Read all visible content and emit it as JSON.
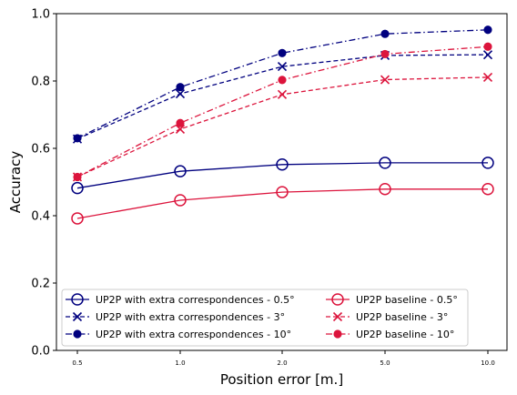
{
  "chart_data": {
    "type": "line",
    "xlabel": "Position error [m.]",
    "ylabel": "Accuracy",
    "categories": [
      "0.5",
      "1.0",
      "2.0",
      "5.0",
      "10.0"
    ],
    "ylim": [
      0.0,
      1.0
    ],
    "yticks": [
      "0.0",
      "0.2",
      "0.4",
      "0.6",
      "0.8",
      "1.0"
    ],
    "grid": false,
    "legend_position": "bottom-center",
    "series": [
      {
        "name": "UP2P with extra correspondences - 0.5°",
        "color": "#00007f",
        "marker": "open-circle",
        "linestyle": "solid",
        "values": [
          0.482,
          0.532,
          0.552,
          0.557,
          0.557
        ]
      },
      {
        "name": "UP2P with extra correspondences - 3°",
        "color": "#00007f",
        "marker": "x",
        "linestyle": "dashed",
        "values": [
          0.628,
          0.762,
          0.843,
          0.876,
          0.878
        ]
      },
      {
        "name": "UP2P with extra correspondences - 10°",
        "color": "#00007f",
        "marker": "dot",
        "linestyle": "dashdot",
        "values": [
          0.63,
          0.782,
          0.883,
          0.94,
          0.952
        ]
      },
      {
        "name": "UP2P baseline - 0.5°",
        "color": "#dc143c",
        "marker": "open-circle",
        "linestyle": "solid",
        "values": [
          0.392,
          0.446,
          0.47,
          0.479,
          0.479
        ]
      },
      {
        "name": "UP2P baseline - 3°",
        "color": "#dc143c",
        "marker": "x",
        "linestyle": "dashed",
        "values": [
          0.515,
          0.657,
          0.76,
          0.804,
          0.811
        ]
      },
      {
        "name": "UP2P baseline - 10°",
        "color": "#dc143c",
        "marker": "dot",
        "linestyle": "dashdot",
        "values": [
          0.515,
          0.675,
          0.803,
          0.88,
          0.902
        ]
      }
    ]
  }
}
